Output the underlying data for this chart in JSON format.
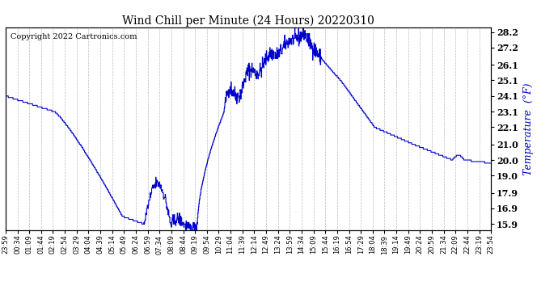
{
  "title": "Wind Chill per Minute (24 Hours) 20220310",
  "ylabel": "Temperature  (°F)",
  "copyright_text": "Copyright 2022 Cartronics.com",
  "line_color": "#0000CC",
  "ylabel_color": "#0000CC",
  "background_color": "#ffffff",
  "grid_color": "#aaaaaa",
  "yticks": [
    15.9,
    16.9,
    17.9,
    19.0,
    20.0,
    21.0,
    22.1,
    23.1,
    24.1,
    25.1,
    26.1,
    27.2,
    28.2
  ],
  "ymin": 15.5,
  "ymax": 28.5,
  "xtick_labels": [
    "23:59",
    "00:34",
    "01:09",
    "01:44",
    "02:19",
    "02:54",
    "03:29",
    "04:04",
    "04:39",
    "05:14",
    "05:49",
    "06:24",
    "06:59",
    "07:34",
    "08:09",
    "08:44",
    "09:19",
    "09:54",
    "10:29",
    "11:04",
    "11:39",
    "12:14",
    "12:49",
    "13:24",
    "13:59",
    "14:34",
    "15:09",
    "15:44",
    "16:19",
    "16:54",
    "17:29",
    "18:04",
    "18:39",
    "19:14",
    "19:49",
    "20:24",
    "20:59",
    "21:34",
    "22:09",
    "22:44",
    "23:19",
    "23:54"
  ]
}
